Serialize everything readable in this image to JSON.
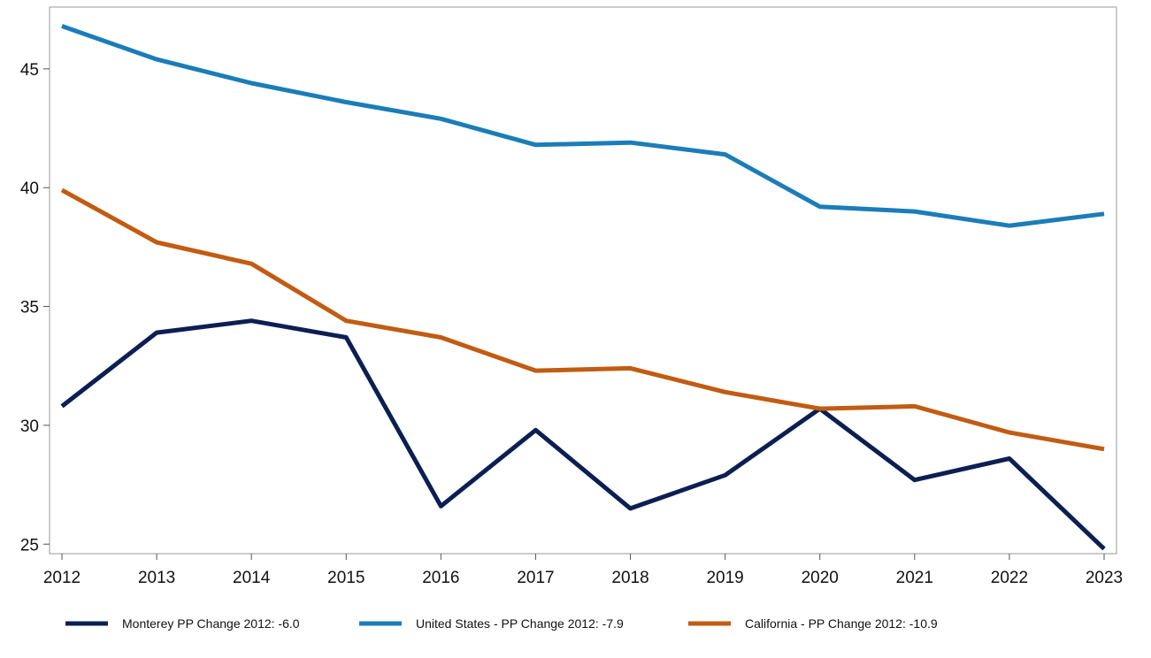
{
  "chart_data": {
    "type": "line",
    "title": "",
    "xlabel": "",
    "ylabel": "",
    "x": [
      2012,
      2013,
      2014,
      2015,
      2016,
      2017,
      2018,
      2019,
      2020,
      2021,
      2022,
      2023
    ],
    "xlim": [
      2012,
      2023
    ],
    "ylim": [
      24.6,
      47.6
    ],
    "yticks": [
      25,
      30,
      35,
      40,
      45
    ],
    "grid": false,
    "legend_position": "bottom",
    "series": [
      {
        "name": "Monterey PP Change 2012: -6.0",
        "color": "#0b1f52",
        "values": [
          30.8,
          33.9,
          34.4,
          33.7,
          26.6,
          29.8,
          26.5,
          27.9,
          30.7,
          27.7,
          28.6,
          24.8
        ]
      },
      {
        "name": "United States - PP Change 2012: -7.9",
        "color": "#1b7db8",
        "values": [
          46.8,
          45.4,
          44.4,
          43.6,
          42.9,
          41.8,
          41.9,
          41.4,
          39.2,
          39.0,
          38.4,
          38.9
        ]
      },
      {
        "name": "California - PP Change 2012: -10.9",
        "color": "#c15c12",
        "values": [
          39.9,
          37.7,
          36.8,
          34.4,
          33.7,
          32.3,
          32.4,
          31.4,
          30.7,
          30.8,
          29.7,
          29.0
        ]
      }
    ]
  }
}
